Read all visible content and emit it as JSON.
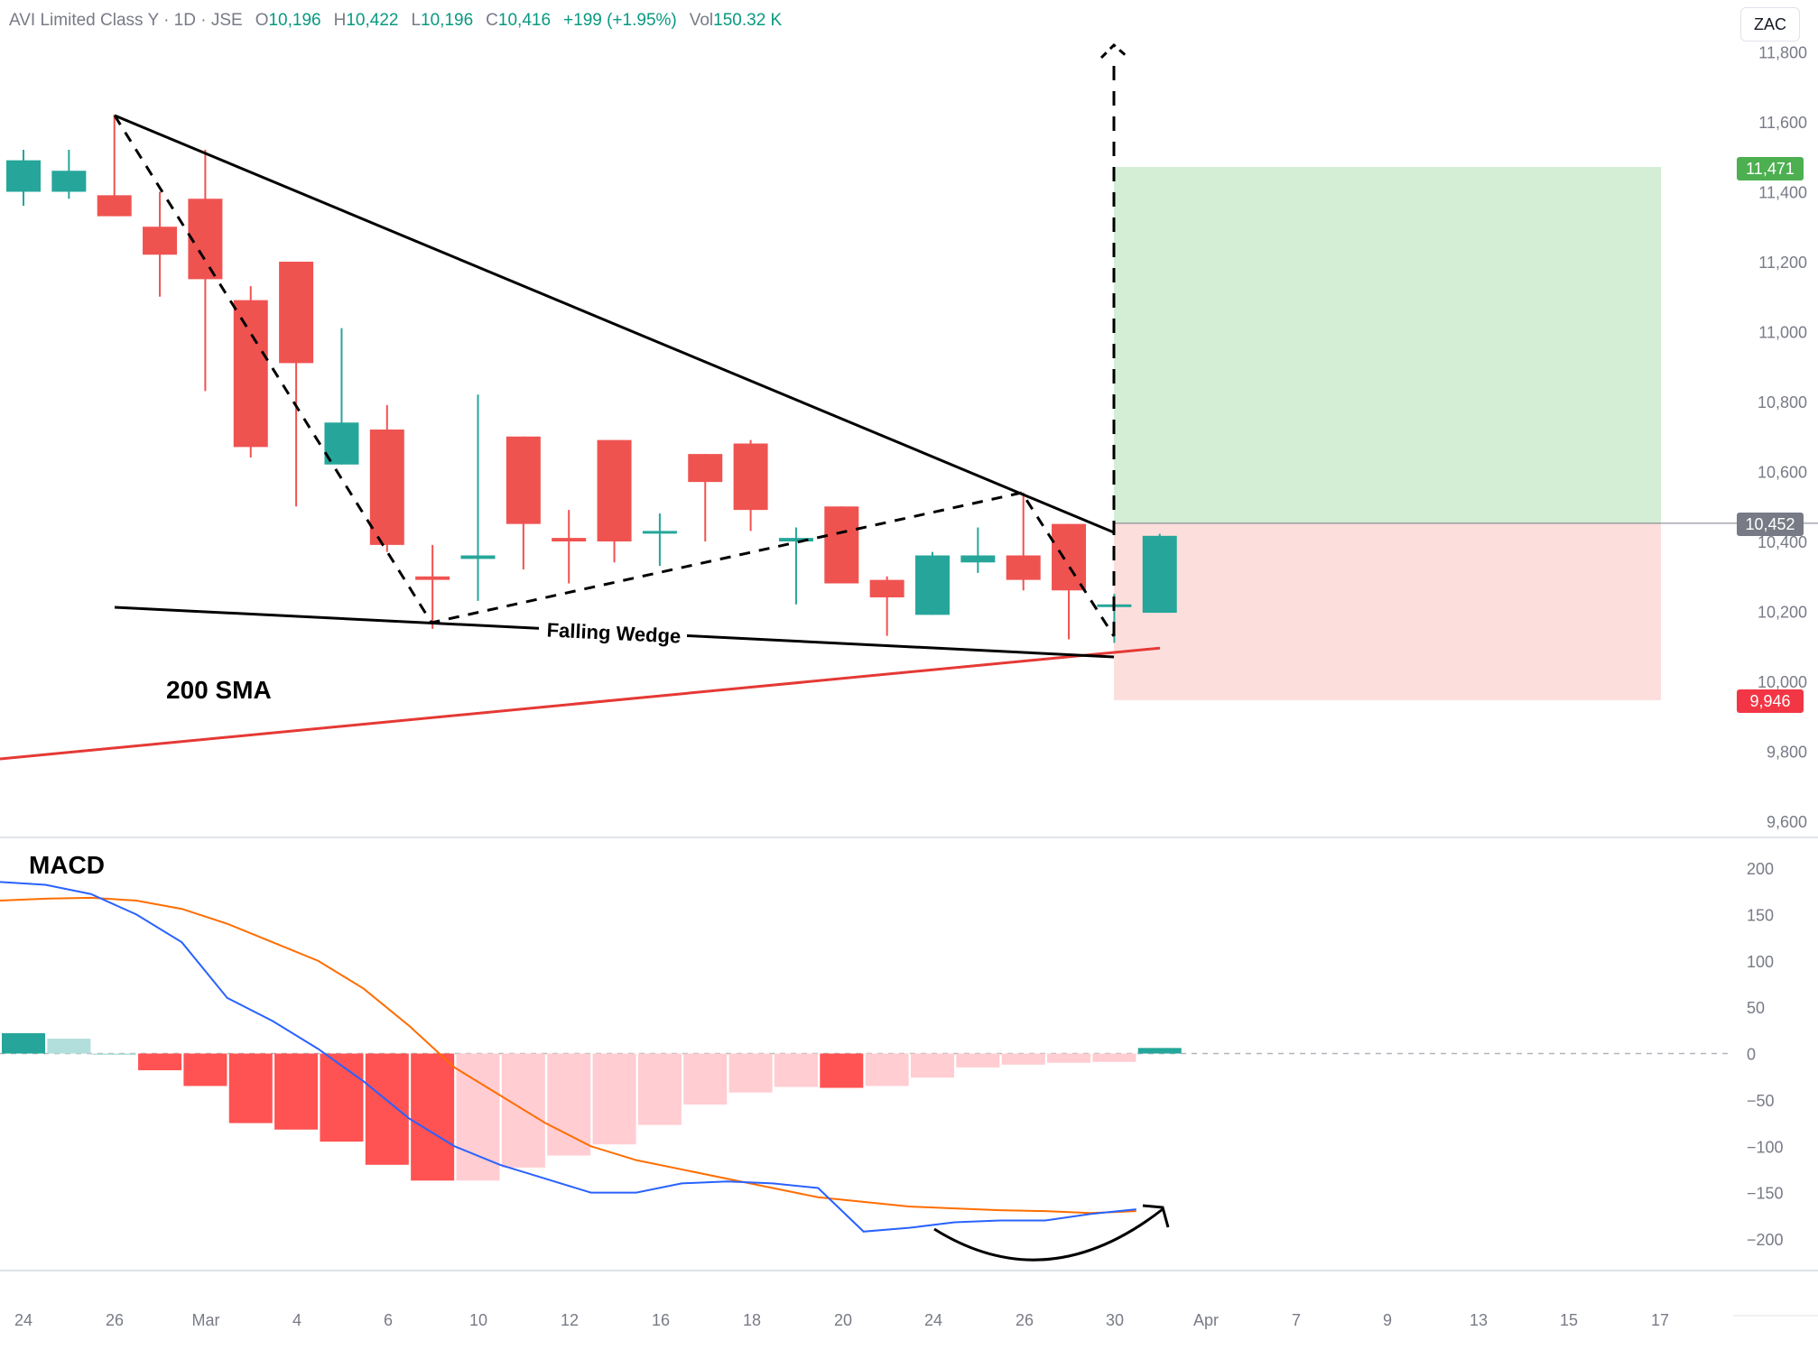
{
  "header": {
    "symbol": "AVI Limited Class Y · 1D · JSE",
    "open_label": "O",
    "open": "10,196",
    "high_label": "H",
    "high": "10,422",
    "low_label": "L",
    "low": "10,196",
    "close_label": "C",
    "close": "10,416",
    "change": "+199 (+1.95%)",
    "volume_label": "Vol",
    "volume": "150.32 K"
  },
  "currency": "ZAC",
  "price_axis": {
    "labels": [
      "11,800",
      "11,600",
      "11,400",
      "11,200",
      "11,000",
      "10,800",
      "10,600",
      "10,400",
      "10,200",
      "10,000",
      "9,800",
      "9,600"
    ],
    "values": [
      11800,
      11600,
      11400,
      11200,
      11000,
      10800,
      10600,
      10400,
      10200,
      10000,
      9800,
      9600
    ]
  },
  "macd_axis": {
    "labels": [
      "200",
      "150",
      "100",
      "50",
      "0",
      "−50",
      "−100",
      "−150",
      "−200"
    ],
    "values": [
      200,
      150,
      100,
      50,
      0,
      -50,
      -100,
      -150,
      -200
    ]
  },
  "time_axis": {
    "labels": [
      "24",
      "26",
      "Mar",
      "4",
      "6",
      "10",
      "12",
      "16",
      "18",
      "20",
      "24",
      "26",
      "30",
      "Apr",
      "7",
      "9",
      "13",
      "15",
      "17"
    ]
  },
  "price_tags": {
    "target": "11,471",
    "entry": "10,452",
    "stop": "9,946"
  },
  "annotations": {
    "pattern_label": "Falling Wedge",
    "sma_label": "200 SMA",
    "macd_title": "MACD"
  },
  "colors": {
    "up": "#26a69a",
    "down": "#ef5350",
    "sma": "#e53935",
    "macd_line": "#2962ff",
    "signal_line": "#ff6d00",
    "hist_strong_down": "#ff5252",
    "hist_weak_down": "#ffcdd2",
    "hist_strong_up": "#26a69a",
    "hist_weak_up": "#b2dfdb",
    "target_zone": "#d3eed5",
    "stop_zone": "#fcdfdd",
    "target_tag": "#4caf50",
    "stop_tag": "#f23645",
    "entry_tag": "#787b86"
  },
  "chart_data": {
    "type": "candlestick",
    "title": "AVI Limited Class Y · 1D · JSE",
    "dates": [
      "Feb 24",
      "Feb 25",
      "Feb 26",
      "Feb 27",
      "Feb 28",
      "Mar 3",
      "Mar 4",
      "Mar 5",
      "Mar 6",
      "Mar 7",
      "Mar 10",
      "Mar 11",
      "Mar 12",
      "Mar 13",
      "Mar 14",
      "Mar 17",
      "Mar 18",
      "Mar 19",
      "Mar 20",
      "Mar 24",
      "Mar 25",
      "Mar 26",
      "Mar 27",
      "Mar 28",
      "Mar 31",
      "Apr 1"
    ],
    "ohlc": [
      {
        "o": 11400,
        "h": 11520,
        "l": 11360,
        "c": 11490
      },
      {
        "o": 11400,
        "h": 11520,
        "l": 11380,
        "c": 11460
      },
      {
        "o": 11390,
        "h": 11620,
        "l": 11330,
        "c": 11330
      },
      {
        "o": 11300,
        "h": 11400,
        "l": 11100,
        "c": 11220
      },
      {
        "o": 11380,
        "h": 11520,
        "l": 10830,
        "c": 11150
      },
      {
        "o": 11090,
        "h": 11130,
        "l": 10640,
        "c": 10670
      },
      {
        "o": 11200,
        "h": 11200,
        "l": 10500,
        "c": 10910
      },
      {
        "o": 10620,
        "h": 11010,
        "l": 10620,
        "c": 10740
      },
      {
        "o": 10720,
        "h": 10790,
        "l": 10370,
        "c": 10390
      },
      {
        "o": 10300,
        "h": 10390,
        "l": 10150,
        "c": 10290
      },
      {
        "o": 10350,
        "h": 10820,
        "l": 10230,
        "c": 10360
      },
      {
        "o": 10700,
        "h": 10700,
        "l": 10320,
        "c": 10450
      },
      {
        "o": 10410,
        "h": 10490,
        "l": 10280,
        "c": 10400
      },
      {
        "o": 10690,
        "h": 10690,
        "l": 10340,
        "c": 10400
      },
      {
        "o": 10430,
        "h": 10480,
        "l": 10330,
        "c": 10430
      },
      {
        "o": 10650,
        "h": 10650,
        "l": 10400,
        "c": 10570
      },
      {
        "o": 10680,
        "h": 10690,
        "l": 10430,
        "c": 10490
      },
      {
        "o": 10400,
        "h": 10440,
        "l": 10220,
        "c": 10410
      },
      {
        "o": 10500,
        "h": 10500,
        "l": 10280,
        "c": 10280
      },
      {
        "o": 10290,
        "h": 10300,
        "l": 10130,
        "c": 10240
      },
      {
        "o": 10190,
        "h": 10370,
        "l": 10190,
        "c": 10360
      },
      {
        "o": 10340,
        "h": 10440,
        "l": 10310,
        "c": 10360
      },
      {
        "o": 10360,
        "h": 10540,
        "l": 10260,
        "c": 10290
      },
      {
        "o": 10450,
        "h": 10450,
        "l": 10120,
        "c": 10260
      },
      {
        "o": 10220,
        "h": 10250,
        "l": 10110,
        "c": 10220
      },
      {
        "o": 10196,
        "h": 10422,
        "l": 10196,
        "c": 10416
      }
    ],
    "sma200_label": "200 SMA",
    "position": {
      "target": 11471,
      "entry": 10452,
      "stop": 9946
    },
    "macd": {
      "title": "MACD",
      "histogram": [
        22,
        16,
        0,
        -18,
        -35,
        -75,
        -82,
        -95,
        -120,
        -137,
        -137,
        -123,
        -110,
        -98,
        -77,
        -55,
        -42,
        -36,
        -37,
        -35,
        -26,
        -15,
        -12,
        -10,
        -9,
        6
      ],
      "macd_line": [
        185,
        182,
        172,
        150,
        120,
        60,
        35,
        5,
        -30,
        -70,
        -100,
        -120,
        -135,
        -150,
        -150,
        -140,
        -138,
        -140,
        -145,
        -192,
        -188,
        -182,
        -180,
        -180,
        -173,
        -168
      ],
      "signal_line": [
        165,
        167,
        168,
        165,
        156,
        140,
        120,
        100,
        70,
        30,
        -15,
        -45,
        -75,
        -100,
        -115,
        -125,
        -135,
        -145,
        -155,
        -160,
        -165,
        -167,
        -169,
        -170,
        -172,
        -170
      ]
    },
    "ylim": [
      9600,
      11800
    ],
    "macd_ylim": [
      -200,
      200
    ]
  }
}
